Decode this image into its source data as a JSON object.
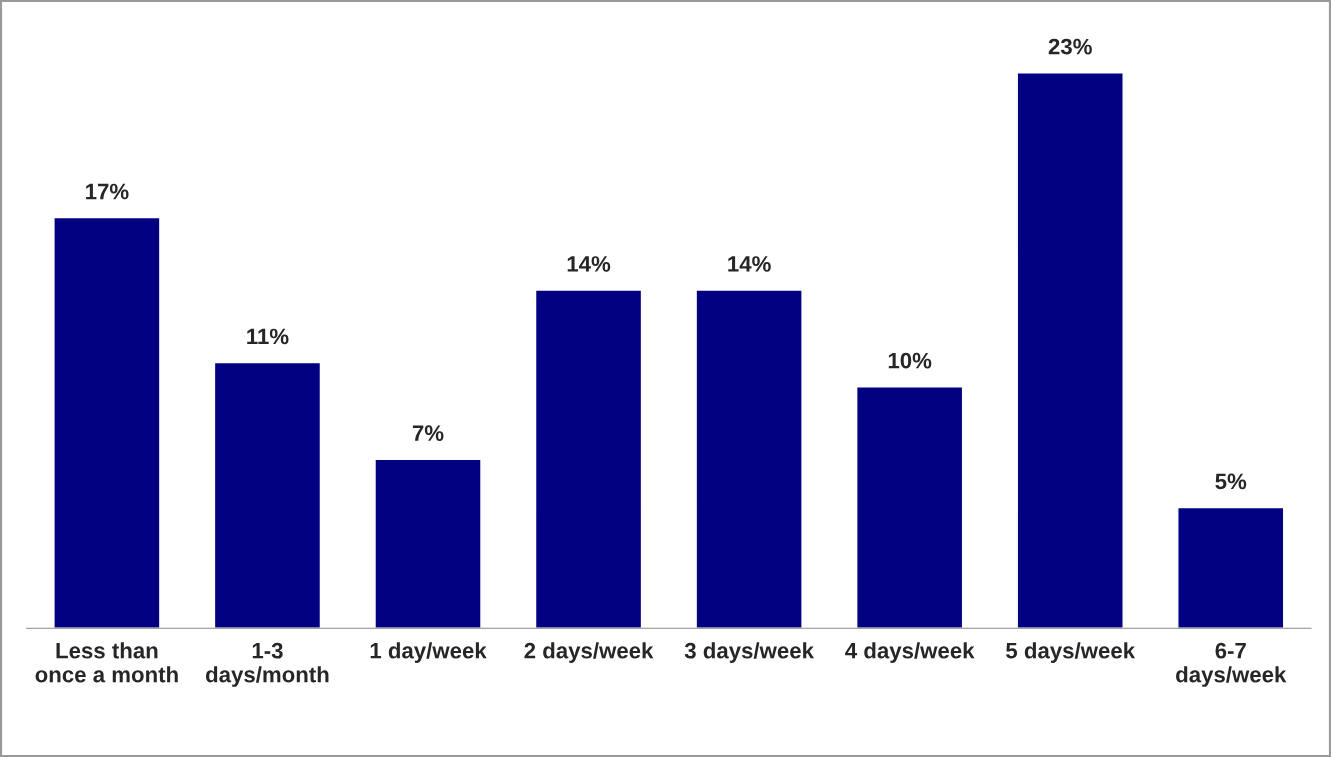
{
  "chart_data": {
    "type": "bar",
    "categories": [
      "Less than\nonce a month",
      "1-3\ndays/month",
      "1 day/week",
      "2 days/week",
      "3 days/week",
      "4 days/week",
      "5 days/week",
      "6-7\ndays/week"
    ],
    "values": [
      17,
      11,
      7,
      14,
      14,
      10,
      23,
      5
    ],
    "value_labels": [
      "17%",
      "11%",
      "7%",
      "14%",
      "14%",
      "10%",
      "23%",
      "5%"
    ],
    "color": "#000080",
    "grid": false,
    "legend": false
  }
}
